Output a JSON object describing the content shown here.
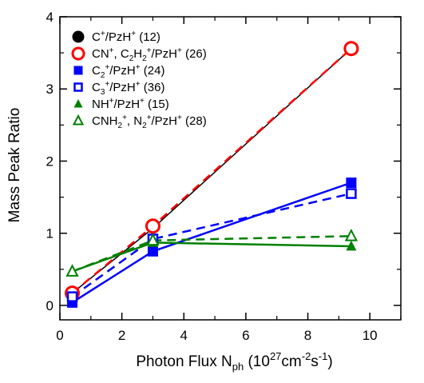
{
  "chart_data": {
    "type": "line",
    "xlabel_parts": [
      {
        "t": "Photon Flux N"
      },
      {
        "t": "ph",
        "sub": true
      },
      {
        "t": " (10"
      },
      {
        "t": "27",
        "sup": true
      },
      {
        "t": "cm"
      },
      {
        "t": "-2",
        "sup": true
      },
      {
        "t": "s"
      },
      {
        "t": "-1",
        "sup": true
      },
      {
        "t": ")"
      }
    ],
    "ylabel": "Mass Peak Ratio",
    "xlim": [
      0,
      11
    ],
    "ylim": [
      -0.2,
      4
    ],
    "x_ticks": [
      0,
      2,
      4,
      6,
      8,
      10
    ],
    "y_ticks": [
      0,
      1,
      2,
      3,
      4
    ],
    "x_tick_labels": [
      "0",
      "2",
      "4",
      "6",
      "8",
      "10"
    ],
    "y_tick_labels": [
      "0",
      "1",
      "2",
      "3",
      "4"
    ],
    "legend_position": "top-left",
    "series": [
      {
        "key": "c",
        "legend": [
          {
            "t": "C"
          },
          {
            "t": "+",
            "sup": true
          },
          {
            "t": "/PzH"
          },
          {
            "t": "+",
            "sup": true
          },
          {
            "t": " (12)"
          }
        ],
        "color": "#000000",
        "marker": "circle-filled",
        "line": "solid",
        "x": [
          0.4,
          3.0,
          9.4
        ],
        "y": [
          0.17,
          1.07,
          3.56
        ],
        "markers_plotted": false
      },
      {
        "key": "cn",
        "legend": [
          {
            "t": "CN"
          },
          {
            "t": "+",
            "sup": true
          },
          {
            "t": ", C"
          },
          {
            "t": "2",
            "sub": true
          },
          {
            "t": "H"
          },
          {
            "t": "2",
            "sub": true
          },
          {
            "t": "+",
            "sup": true
          },
          {
            "t": "/PzH"
          },
          {
            "t": "+",
            "sup": true
          },
          {
            "t": " (26)"
          }
        ],
        "color": "#ff0000",
        "marker": "circle-open",
        "line": "dashed",
        "x": [
          0.4,
          3.0,
          9.4
        ],
        "y": [
          0.17,
          1.1,
          3.56
        ],
        "markers_plotted": true
      },
      {
        "key": "c2",
        "legend": [
          {
            "t": "C"
          },
          {
            "t": "2",
            "sub": true
          },
          {
            "t": "+",
            "sup": true
          },
          {
            "t": "/PzH"
          },
          {
            "t": "+",
            "sup": true
          },
          {
            "t": " (24)"
          }
        ],
        "color": "#0000ff",
        "marker": "square-filled",
        "line": "solid",
        "x": [
          0.4,
          3.0,
          9.4
        ],
        "y": [
          0.04,
          0.75,
          1.7
        ],
        "markers_plotted": true
      },
      {
        "key": "c3",
        "legend": [
          {
            "t": "C"
          },
          {
            "t": "3",
            "sub": true
          },
          {
            "t": "+",
            "sup": true
          },
          {
            "t": "/PzH"
          },
          {
            "t": "+",
            "sup": true
          },
          {
            "t": " (36)"
          }
        ],
        "color": "#0000ff",
        "marker": "square-open",
        "line": "dashed",
        "x": [
          0.4,
          3.0,
          9.4
        ],
        "y": [
          0.12,
          0.92,
          1.55
        ],
        "markers_plotted": true
      },
      {
        "key": "nh",
        "legend": [
          {
            "t": "NH"
          },
          {
            "t": "+",
            "sup": true
          },
          {
            "t": "/PzH"
          },
          {
            "t": "+",
            "sup": true
          },
          {
            "t": " (15)"
          }
        ],
        "color": "#008000",
        "marker": "triangle-filled",
        "line": "solid",
        "x": [
          0.4,
          3.0,
          9.4
        ],
        "y": [
          0.47,
          0.87,
          0.82
        ],
        "markers_plotted": true
      },
      {
        "key": "cnh2",
        "legend": [
          {
            "t": "CNH"
          },
          {
            "t": "2",
            "sub": true
          },
          {
            "t": "+",
            "sup": true
          },
          {
            "t": ", N"
          },
          {
            "t": "2",
            "sub": true
          },
          {
            "t": "+",
            "sup": true
          },
          {
            "t": "/PzH"
          },
          {
            "t": "+",
            "sup": true
          },
          {
            "t": " (28)"
          }
        ],
        "color": "#008000",
        "marker": "triangle-open",
        "line": "dashed",
        "x": [
          0.4,
          3.0,
          9.4
        ],
        "y": [
          0.47,
          0.9,
          0.96
        ],
        "markers_plotted": true
      }
    ]
  }
}
